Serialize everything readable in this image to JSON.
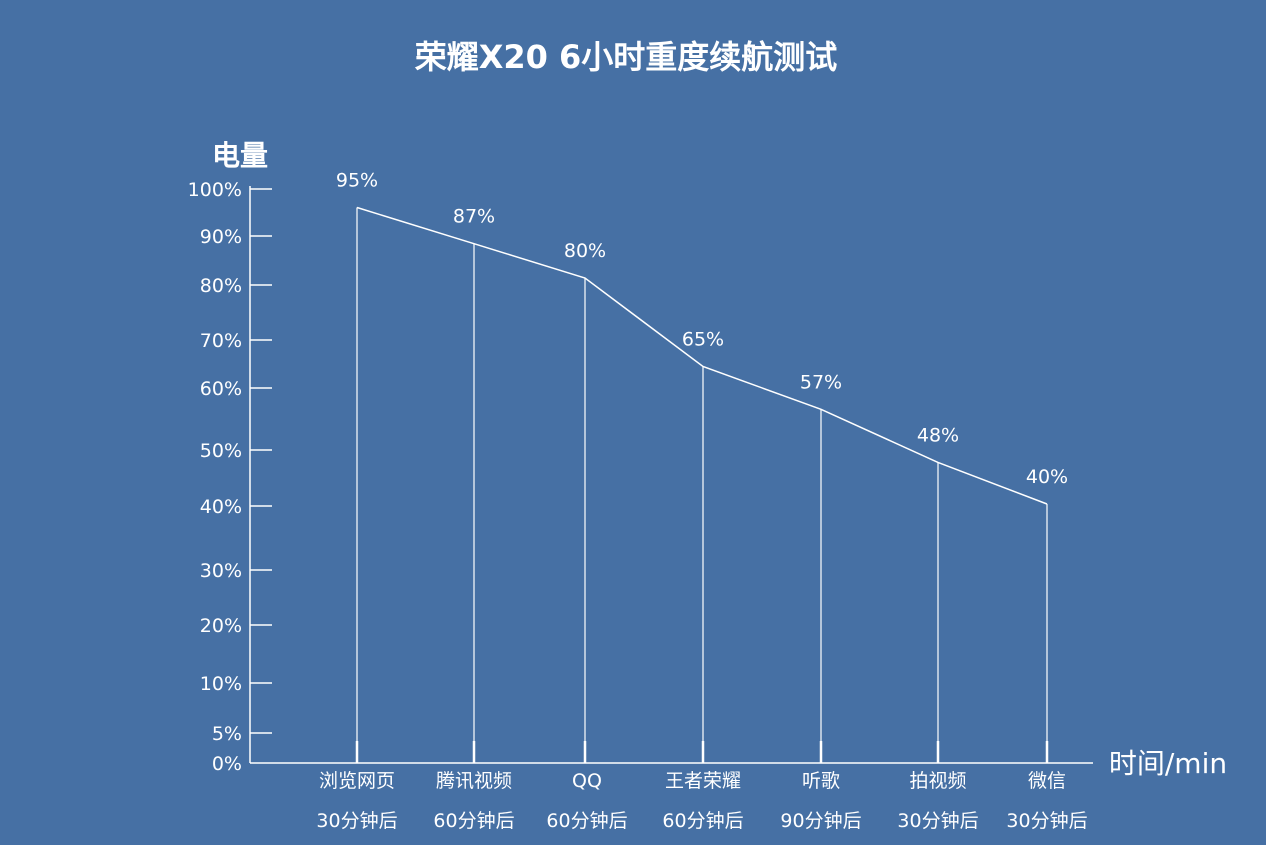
{
  "chart_data": {
    "type": "line",
    "title": "荣耀X20 6小时重度续航测试",
    "ylabel": "电量",
    "xlabel": "时间/min",
    "y_ticks": [
      "100%",
      "90%",
      "80%",
      "70%",
      "60%",
      "50%",
      "40%",
      "30%",
      "20%",
      "10%",
      "5%",
      "0%"
    ],
    "categories": [
      {
        "label": "浏览网页",
        "duration": "30分钟后"
      },
      {
        "label": "腾讯视频",
        "duration": "60分钟后"
      },
      {
        "label": "QQ",
        "duration": "60分钟后"
      },
      {
        "label": "王者荣耀",
        "duration": "60分钟后"
      },
      {
        "label": "听歌",
        "duration": "90分钟后"
      },
      {
        "label": "拍视频",
        "duration": "30分钟后"
      },
      {
        "label": "微信",
        "duration": "30分钟后"
      }
    ],
    "values": [
      95,
      87,
      80,
      65,
      57,
      48,
      40
    ],
    "value_labels": [
      "95%",
      "87%",
      "80%",
      "65%",
      "57%",
      "48%",
      "40%"
    ],
    "ylim": [
      0,
      100
    ],
    "grid": false,
    "colors": {
      "background": "#4670a4",
      "foreground": "#ffffff"
    }
  }
}
